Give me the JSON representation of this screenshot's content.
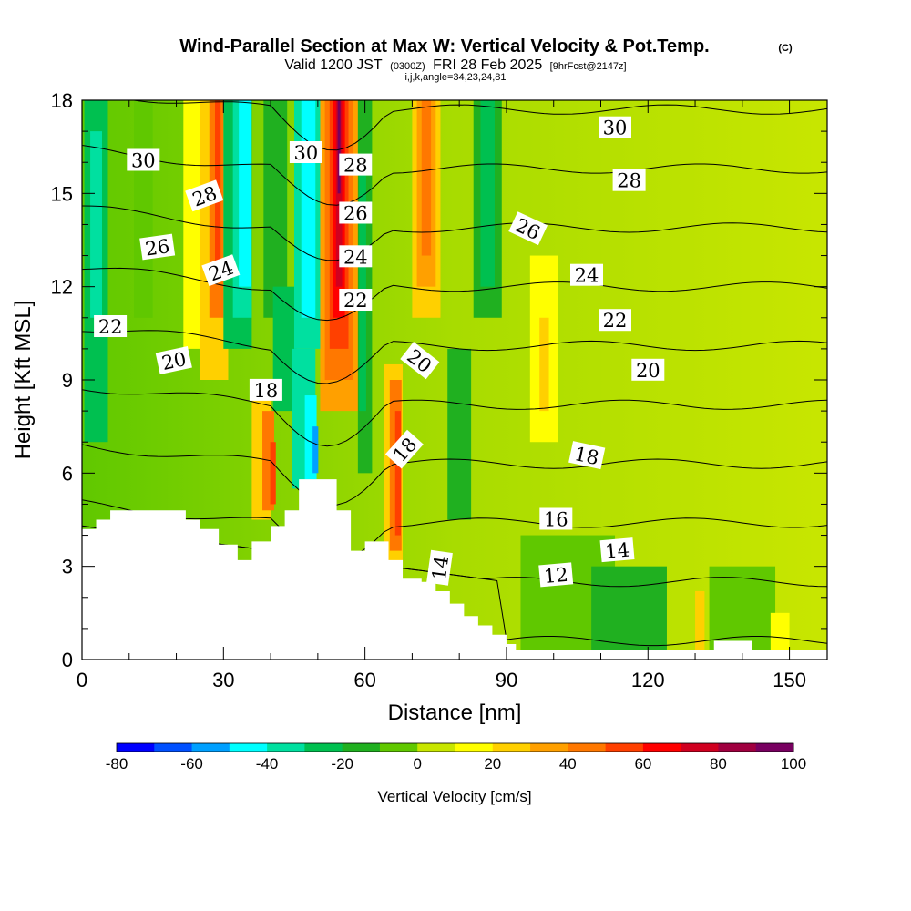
{
  "title": "Wind-Parallel Section at Max W: Vertical Velocity & Pot.Temp.",
  "copyright": "(C)",
  "valid_prefix": "Valid 1200 JST",
  "valid_utc": "(0300Z)",
  "valid_date": "FRI 28 Feb 2025",
  "forecast": "[9hrFcst@2147z]",
  "ijk_line": "i,j,k,angle=34,23,24,81",
  "chart_data": {
    "type": "heatmap",
    "xlabel": "Distance [nm]",
    "ylabel": "Height [Kft MSL]",
    "xlim": [
      0,
      158
    ],
    "ylim": [
      0,
      18
    ],
    "x_ticks": [
      "0",
      "30",
      "60",
      "90",
      "120",
      "150"
    ],
    "y_ticks": [
      "0",
      "3",
      "6",
      "9",
      "12",
      "15",
      "18"
    ],
    "colorbar": {
      "label": "Vertical Velocity [cm/s]",
      "tick_labels": [
        "-80",
        "-60",
        "-40",
        "-20",
        "0",
        "20",
        "40",
        "60",
        "80",
        "100"
      ],
      "levels": [
        -80,
        -70,
        -60,
        -50,
        -40,
        -30,
        -20,
        -10,
        0,
        10,
        20,
        30,
        40,
        50,
        60,
        70,
        80,
        90,
        100
      ],
      "colors": [
        "#0000ff",
        "#0050ff",
        "#00a0ff",
        "#00ffff",
        "#00e0a0",
        "#00c050",
        "#20b020",
        "#60c800",
        "#c8e600",
        "#ffff00",
        "#ffd000",
        "#ffa000",
        "#ff7800",
        "#ff4000",
        "#ff0000",
        "#d00020",
        "#a00040",
        "#780060"
      ]
    },
    "contour_labels": [
      {
        "text": "30",
        "x": 13,
        "y": 16.05,
        "rot": 0
      },
      {
        "text": "28",
        "x": 26,
        "y": 14.9,
        "rot": -20
      },
      {
        "text": "26",
        "x": 16,
        "y": 13.25,
        "rot": -8
      },
      {
        "text": "24",
        "x": 29.5,
        "y": 12.5,
        "rot": -20
      },
      {
        "text": "22",
        "x": 6,
        "y": 10.7,
        "rot": 0
      },
      {
        "text": "20",
        "x": 19.5,
        "y": 9.6,
        "rot": -12
      },
      {
        "text": "18",
        "x": 39,
        "y": 8.65,
        "rot": 0
      },
      {
        "text": "30",
        "x": 47.5,
        "y": 16.3,
        "rot": 0
      },
      {
        "text": "28",
        "x": 58,
        "y": 15.9,
        "rot": 0
      },
      {
        "text": "26",
        "x": 58,
        "y": 14.35,
        "rot": 0
      },
      {
        "text": "24",
        "x": 58,
        "y": 12.95,
        "rot": 0
      },
      {
        "text": "22",
        "x": 58,
        "y": 11.55,
        "rot": 0
      },
      {
        "text": "20",
        "x": 71.5,
        "y": 9.6,
        "rot": 38
      },
      {
        "text": "18",
        "x": 68.5,
        "y": 6.75,
        "rot": -48
      },
      {
        "text": "14",
        "x": 76,
        "y": 2.95,
        "rot": -82
      },
      {
        "text": "30",
        "x": 113,
        "y": 17.1,
        "rot": 0
      },
      {
        "text": "28",
        "x": 116,
        "y": 15.4,
        "rot": 0
      },
      {
        "text": "26",
        "x": 94.5,
        "y": 13.85,
        "rot": 25
      },
      {
        "text": "24",
        "x": 107,
        "y": 12.35,
        "rot": 0
      },
      {
        "text": "22",
        "x": 113,
        "y": 10.9,
        "rot": 0
      },
      {
        "text": "20",
        "x": 120,
        "y": 9.3,
        "rot": 0
      },
      {
        "text": "18",
        "x": 107,
        "y": 6.55,
        "rot": 12
      },
      {
        "text": "16",
        "x": 100.5,
        "y": 4.5,
        "rot": 0
      },
      {
        "text": "14",
        "x": 113.5,
        "y": 3.5,
        "rot": -5
      },
      {
        "text": "12",
        "x": 100.5,
        "y": 2.7,
        "rot": -5
      }
    ],
    "terrain": [
      [
        0,
        4.2
      ],
      [
        3,
        4.5
      ],
      [
        6,
        4.8
      ],
      [
        22,
        4.5
      ],
      [
        25,
        4.2
      ],
      [
        29,
        3.7
      ],
      [
        33,
        3.2
      ],
      [
        36,
        3.8
      ],
      [
        40,
        4.3
      ],
      [
        43,
        4.8
      ],
      [
        46,
        5.8
      ],
      [
        52,
        5.8
      ],
      [
        54,
        4.8
      ],
      [
        57,
        3.5
      ],
      [
        60,
        3.8
      ],
      [
        65,
        3.2
      ],
      [
        68,
        2.6
      ],
      [
        72,
        2.5
      ],
      [
        75,
        2.2
      ],
      [
        78,
        1.8
      ],
      [
        81,
        1.4
      ],
      [
        84,
        1.1
      ],
      [
        87,
        0.8
      ],
      [
        90,
        0.5
      ],
      [
        92,
        0.3
      ],
      [
        133,
        0.3
      ],
      [
        134,
        0.6
      ],
      [
        140,
        0.6
      ],
      [
        142,
        0.3
      ],
      [
        158,
        0.3
      ]
    ]
  }
}
